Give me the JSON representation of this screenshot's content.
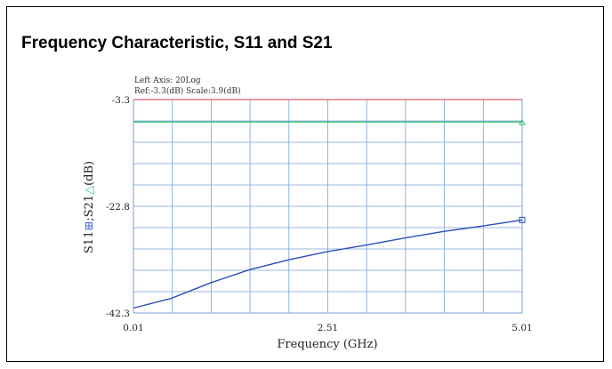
{
  "title": "Frequency Characteristic, S11 and S21",
  "chart_data": {
    "type": "line",
    "info_line1": "Left Axis: 20Log",
    "info_line2": "Ref:-3.3(dB) Scale:3.9(dB)",
    "xlabel": "Frequency  (GHz)",
    "ylabel": "S11 ;S21 (dB)",
    "ylabel_parts": {
      "s11": "S11",
      "sep": ";S21",
      "unit": "(dB)"
    },
    "xlim": [
      0.01,
      5.01
    ],
    "ylim": [
      -42.3,
      -3.3
    ],
    "x_ticks": [
      "0.01",
      "2.51",
      "5.01"
    ],
    "y_ticks": [
      "-3.3",
      "-22.8",
      "-42.3"
    ],
    "grid": true,
    "series": [
      {
        "name": "S11",
        "color": "#2a4fb8",
        "x": [
          0.01,
          0.5,
          1.0,
          1.5,
          2.0,
          2.5,
          3.0,
          3.5,
          4.0,
          4.5,
          5.01
        ],
        "values": [
          -41.4,
          -39.6,
          -36.8,
          -34.4,
          -32.6,
          -31.1,
          -29.9,
          -28.6,
          -27.4,
          -26.4,
          -25.3
        ]
      },
      {
        "name": "S21",
        "color": "#3cc27a",
        "x": [
          0.01,
          5.01
        ],
        "values": [
          -7.4,
          -7.4
        ]
      }
    ],
    "ref_color": "#e05a6a",
    "grid_color": "#7aa0d8"
  }
}
